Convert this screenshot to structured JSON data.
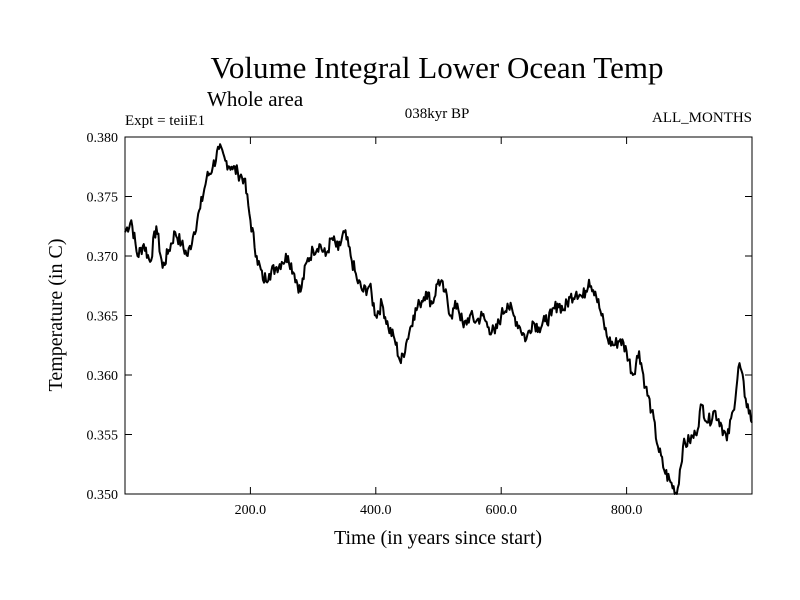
{
  "chart_data": {
    "type": "line",
    "title": "Volume Integral Lower Ocean Temp",
    "subtitle": "Whole area",
    "annotations": {
      "left": "Expt = teiiE1",
      "center": "038kyr BP",
      "right": "ALL_MONTHS"
    },
    "xlabel": "Time (in years since start)",
    "ylabel": "Temperature (in C)",
    "xlim": [
      0,
      1000
    ],
    "ylim": [
      0.35,
      0.38
    ],
    "xticks": [
      200,
      400,
      600,
      800
    ],
    "xtick_labels": [
      "200.0",
      "400.0",
      "600.0",
      "800.0"
    ],
    "yticks": [
      0.35,
      0.355,
      0.36,
      0.365,
      0.37,
      0.375,
      0.38
    ],
    "ytick_labels": [
      "0.350",
      "0.355",
      "0.360",
      "0.365",
      "0.370",
      "0.375",
      "0.380"
    ],
    "grid": false,
    "line_color": "#000000",
    "series": [
      {
        "x": [
          0,
          10,
          20,
          30,
          40,
          50,
          60,
          70,
          80,
          90,
          100,
          110,
          120,
          130,
          140,
          150,
          160,
          170,
          180,
          190,
          200,
          210,
          220,
          230,
          240,
          250,
          260,
          270,
          280,
          290,
          300,
          310,
          320,
          330,
          340,
          350,
          360,
          370,
          380,
          390,
          400,
          410,
          420,
          430,
          440,
          450,
          460,
          470,
          480,
          490,
          500,
          510,
          520,
          530,
          540,
          550,
          560,
          570,
          580,
          590,
          600,
          610,
          620,
          630,
          640,
          650,
          660,
          670,
          680,
          690,
          700,
          710,
          720,
          730,
          740,
          750,
          760,
          770,
          780,
          790,
          800,
          810,
          820,
          830,
          840,
          850,
          860,
          870,
          880,
          890,
          900,
          910,
          920,
          930,
          940,
          950,
          960,
          970,
          980,
          990,
          1000
        ],
        "y": [
          0.372,
          0.373,
          0.37,
          0.371,
          0.3695,
          0.3725,
          0.369,
          0.3705,
          0.372,
          0.371,
          0.37,
          0.372,
          0.374,
          0.3765,
          0.3775,
          0.379,
          0.378,
          0.3775,
          0.377,
          0.3765,
          0.373,
          0.37,
          0.368,
          0.3685,
          0.369,
          0.3695,
          0.37,
          0.3685,
          0.367,
          0.3695,
          0.3705,
          0.371,
          0.37,
          0.3715,
          0.3705,
          0.372,
          0.37,
          0.368,
          0.367,
          0.3675,
          0.365,
          0.366,
          0.364,
          0.363,
          0.361,
          0.363,
          0.365,
          0.366,
          0.367,
          0.366,
          0.368,
          0.367,
          0.365,
          0.366,
          0.364,
          0.365,
          0.3645,
          0.365,
          0.364,
          0.3635,
          0.365,
          0.366,
          0.365,
          0.364,
          0.363,
          0.3645,
          0.364,
          0.3645,
          0.365,
          0.366,
          0.3655,
          0.3665,
          0.367,
          0.3665,
          0.368,
          0.367,
          0.365,
          0.363,
          0.3625,
          0.363,
          0.362,
          0.36,
          0.362,
          0.359,
          0.357,
          0.354,
          0.352,
          0.351,
          0.35,
          0.354,
          0.3545,
          0.355,
          0.3575,
          0.356,
          0.357,
          0.356,
          0.3545,
          0.357,
          0.361,
          0.358,
          0.356
        ]
      }
    ]
  }
}
